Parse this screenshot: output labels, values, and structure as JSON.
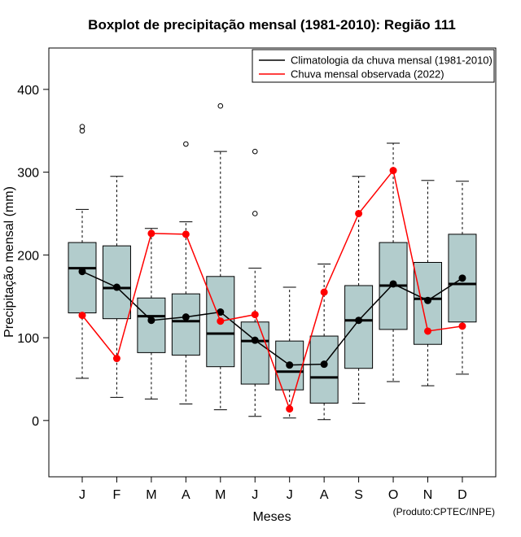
{
  "chart_data": {
    "type": "boxplot",
    "title": "Boxplot de precipitação mensal (1981-2010): Região 111",
    "xlabel": "Meses",
    "ylabel": "Precipitação mensal (mm)",
    "categories": [
      "J",
      "F",
      "M",
      "A",
      "M",
      "J",
      "J",
      "A",
      "S",
      "O",
      "N",
      "D"
    ],
    "ylim": [
      -68,
      450
    ],
    "yticks": [
      0,
      100,
      200,
      300,
      400
    ],
    "box_color": "#b2cccc",
    "boxes": [
      {
        "whisker_low": 51,
        "q1": 130,
        "median": 184,
        "q3": 215,
        "whisker_high": 255,
        "outliers": [
          350,
          355
        ]
      },
      {
        "whisker_low": 28,
        "q1": 123,
        "median": 160,
        "q3": 211,
        "whisker_high": 295,
        "outliers": []
      },
      {
        "whisker_low": 26,
        "q1": 82,
        "median": 126,
        "q3": 148,
        "whisker_high": 232,
        "outliers": []
      },
      {
        "whisker_low": 20,
        "q1": 79,
        "median": 120,
        "q3": 153,
        "whisker_high": 240,
        "outliers": [
          334
        ]
      },
      {
        "whisker_low": 13,
        "q1": 65,
        "median": 105,
        "q3": 174,
        "whisker_high": 325,
        "outliers": [
          380
        ]
      },
      {
        "whisker_low": 5,
        "q1": 44,
        "median": 96,
        "q3": 119,
        "whisker_high": 184,
        "outliers": [
          250,
          325
        ]
      },
      {
        "whisker_low": 3,
        "q1": 37,
        "median": 59,
        "q3": 96,
        "whisker_high": 161,
        "outliers": []
      },
      {
        "whisker_low": 1,
        "q1": 21,
        "median": 52,
        "q3": 102,
        "whisker_high": 189,
        "outliers": []
      },
      {
        "whisker_low": 21,
        "q1": 63,
        "median": 121,
        "q3": 163,
        "whisker_high": 295,
        "outliers": []
      },
      {
        "whisker_low": 47,
        "q1": 110,
        "median": 163,
        "q3": 215,
        "whisker_high": 335,
        "outliers": []
      },
      {
        "whisker_low": 42,
        "q1": 92,
        "median": 147,
        "q3": 191,
        "whisker_high": 290,
        "outliers": []
      },
      {
        "whisker_low": 56,
        "q1": 119,
        "median": 165,
        "q3": 225,
        "whisker_high": 289,
        "outliers": []
      }
    ],
    "series": [
      {
        "name": "Climatologia da chuva mensal (1981-2010)",
        "color": "#000000",
        "values": [
          180,
          161,
          121,
          125,
          131,
          97,
          67,
          68,
          121,
          165,
          145,
          172
        ]
      },
      {
        "name": "Chuva mensal observada (2022)",
        "color": "#ff0000",
        "values": [
          127,
          75,
          226,
          225,
          120,
          128,
          14,
          155,
          250,
          302,
          108,
          114
        ]
      }
    ],
    "legend_position": "top-right",
    "credit": "(Produto:CPTEC/INPE)"
  }
}
